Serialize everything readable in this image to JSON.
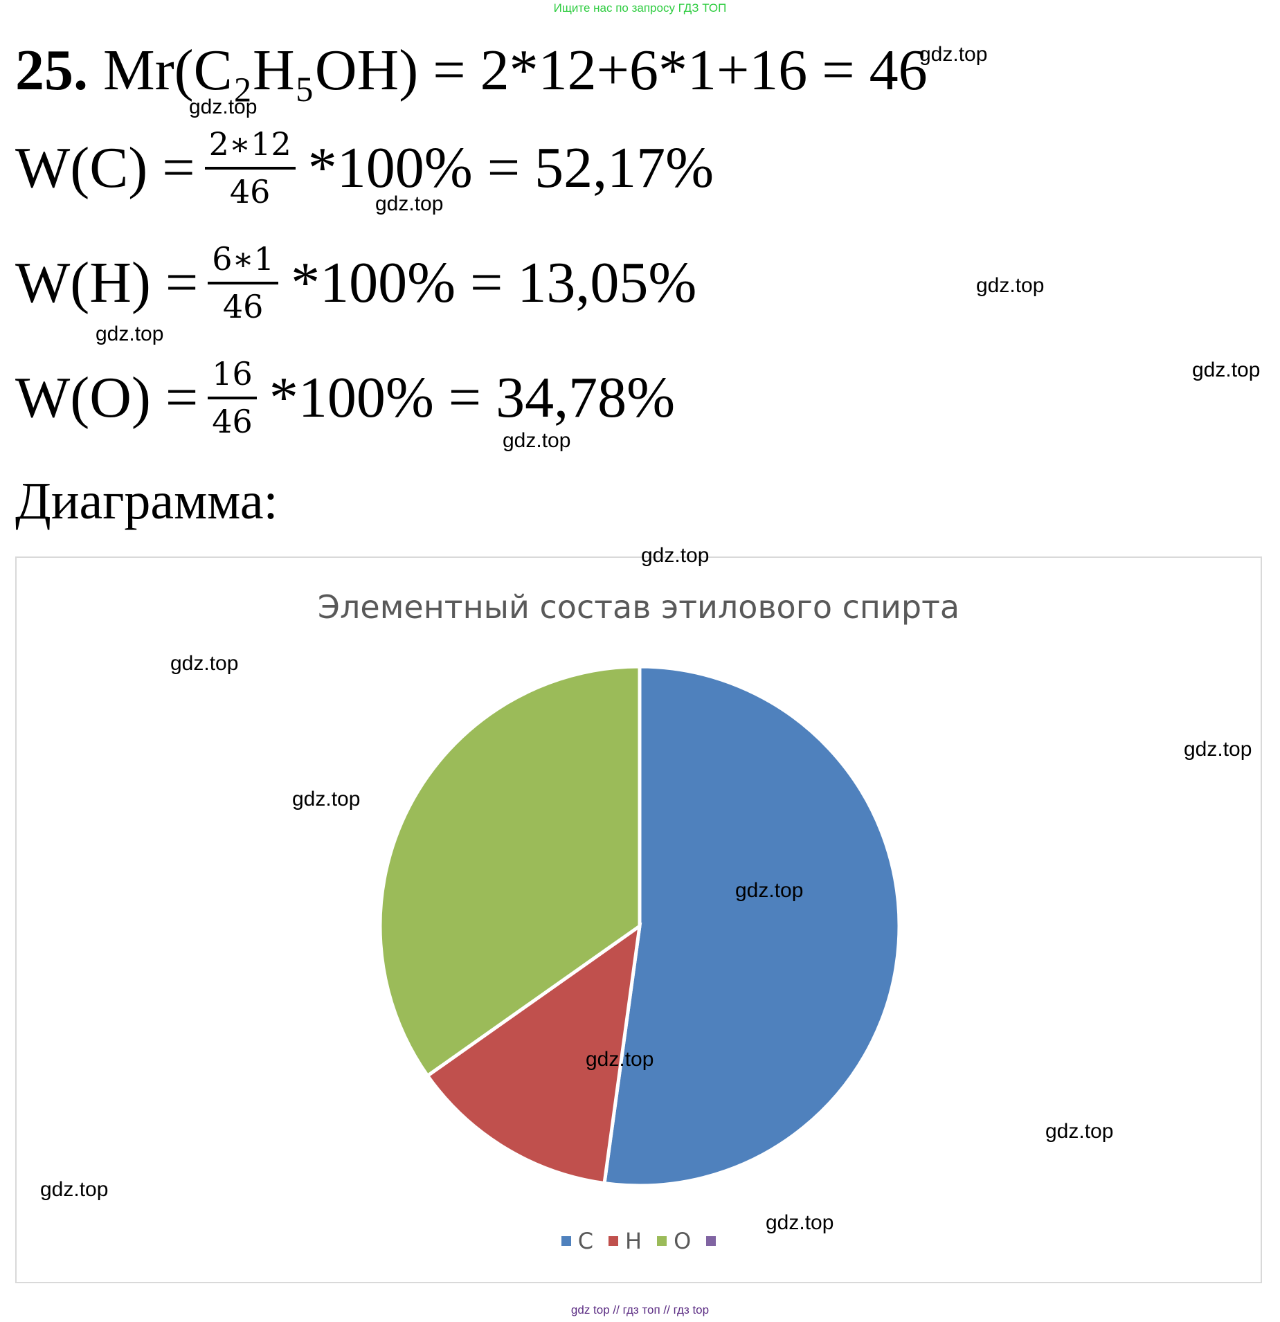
{
  "header_note": {
    "text": "Ищите нас по запросу ГДЗ ТОП",
    "color": "#2ecc40"
  },
  "problem": {
    "number": "25.",
    "mr_line": "Mr(C₂H₅OH) = 2*12+6*1+16 = 46",
    "lines": [
      {
        "lhs": "W(C) =",
        "numerator": "2∗12",
        "denominator": "46",
        "rhs": "*100% = 52,17%"
      },
      {
        "lhs": "W(H) =",
        "numerator": "6∗1",
        "denominator": "46",
        "rhs": "*100% = 13,05%"
      },
      {
        "lhs": "W(O) =",
        "numerator": "16",
        "denominator": "46",
        "rhs": "*100% = 34,78%"
      }
    ],
    "diagram_heading": "Диаграмма:"
  },
  "watermark": "gdz.top",
  "chart_data": {
    "type": "pie",
    "title": "Элементный состав этилового спирта",
    "categories": [
      "C",
      "H",
      "O",
      ""
    ],
    "values": [
      52.17,
      13.05,
      34.78,
      0
    ],
    "colors": [
      "#4f81bd",
      "#c0504d",
      "#9bbb59",
      "#8064a2"
    ],
    "legend_position": "bottom"
  },
  "footer_note": {
    "text": "gdz top // гдз топ // гдз top",
    "color": "#5b2c83"
  }
}
